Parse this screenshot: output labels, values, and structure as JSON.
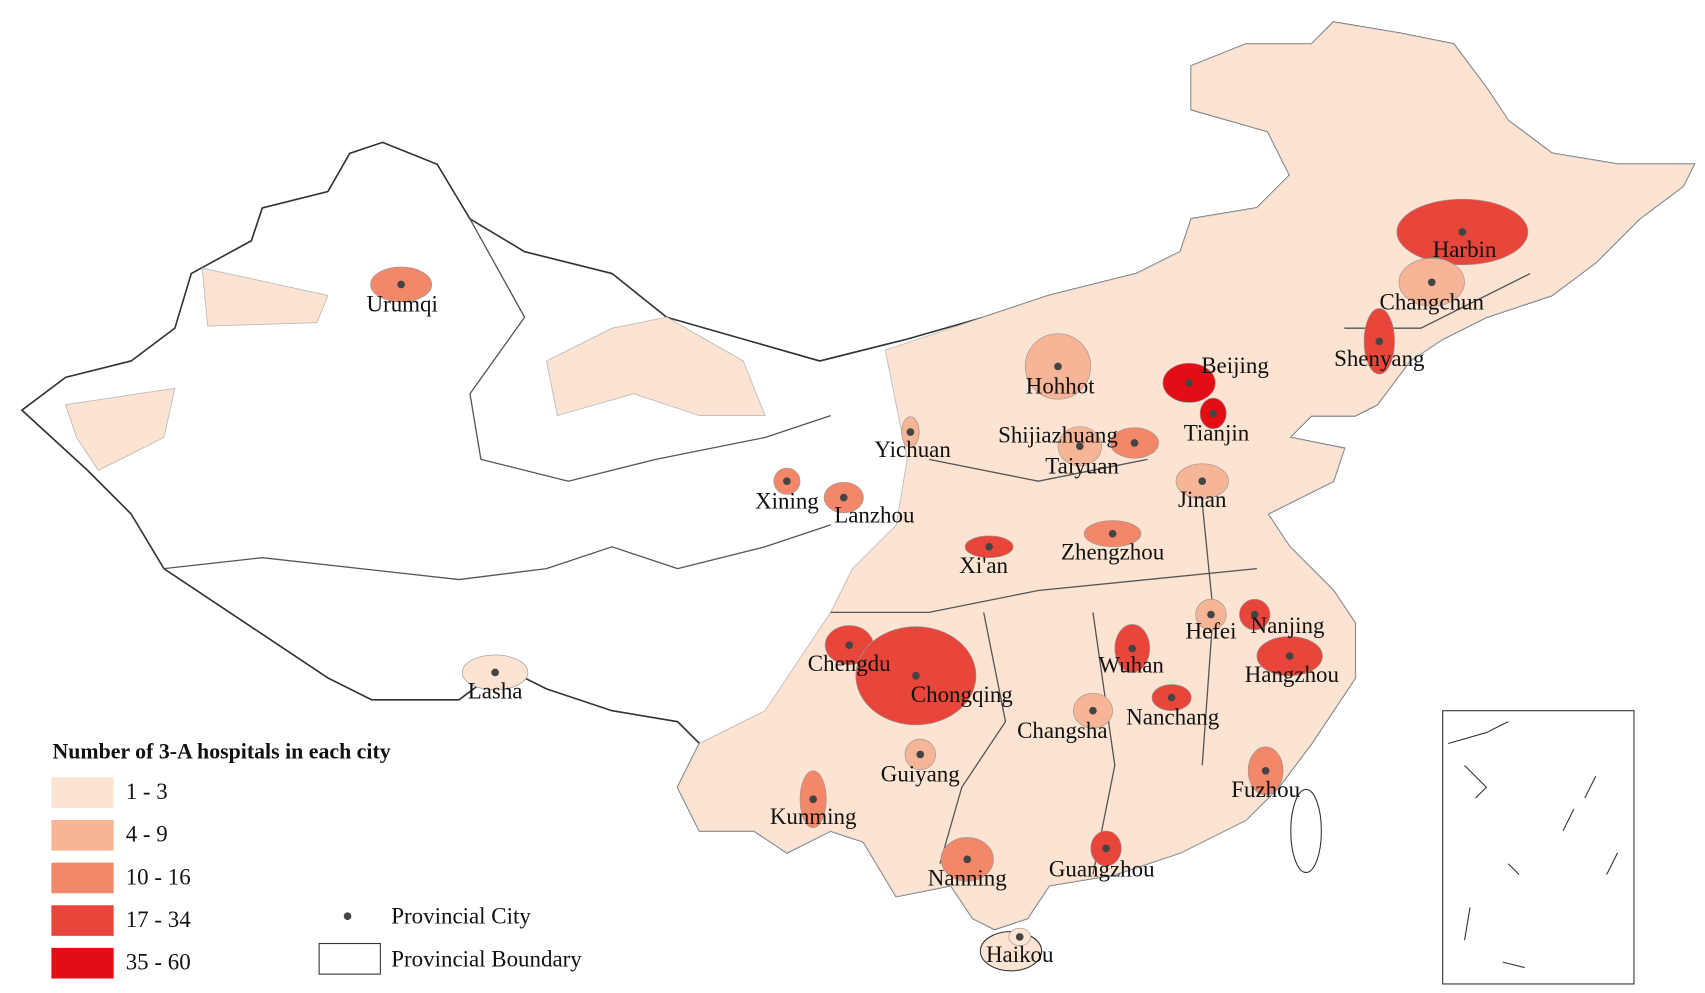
{
  "legend": {
    "title": "Number of 3-A hospitals in each city",
    "items": [
      {
        "label": "1 - 3",
        "color": "#fde4d2"
      },
      {
        "label": "4 - 9",
        "color": "#f7b598"
      },
      {
        "label": "10 - 16",
        "color": "#f2876a"
      },
      {
        "label": "17 - 34",
        "color": "#e8463a"
      },
      {
        "label": "35 - 60",
        "color": "#e30d16"
      }
    ]
  },
  "point_legend": "Provincial City",
  "boundary_legend": "Provincial Boundary",
  "cities": [
    "Urumqi",
    "Harbin",
    "Changchun",
    "Shenyang",
    "Beijing",
    "Tianjin",
    "Hohhot",
    "Yichuan",
    "Shijiazhuang",
    "Taiyuan",
    "Xining",
    "Lanzhou",
    "Jinan",
    "Xi'an",
    "Zhengzhou",
    "Hefei",
    "Nanjing",
    "Chengdu",
    "Chongqing",
    "Wuhan",
    "Hangzhou",
    "Changsha",
    "Nanchang",
    "Guiyang",
    "Fuzhou",
    "Kunming",
    "Nanning",
    "Guangzhou",
    "Lasha",
    "Haikou"
  ]
}
